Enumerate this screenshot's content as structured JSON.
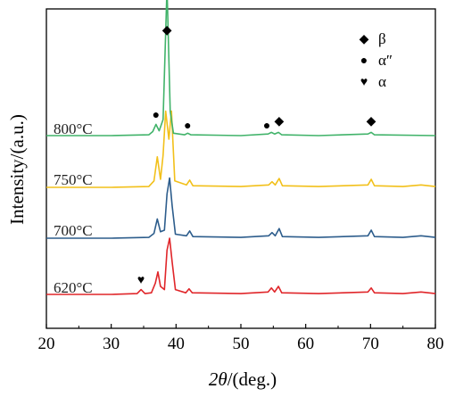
{
  "chart_data": {
    "type": "line",
    "title": "",
    "xlabel_italic": "2θ",
    "xlabel_rest": "/(deg.)",
    "ylabel": "Intensity/(a.u.)",
    "xlim": [
      20,
      80
    ],
    "x_ticks": [
      20,
      30,
      40,
      50,
      60,
      70,
      80
    ],
    "grid": false,
    "legend_position": "top-right",
    "legend": [
      {
        "symbol": "◆",
        "name": "β"
      },
      {
        "symbol": "●",
        "name": "α″"
      },
      {
        "symbol": "♥",
        "name": "α"
      }
    ],
    "series": [
      {
        "name": "620°C",
        "color": "#e0262a",
        "offset": 0,
        "points": [
          [
            20,
            0
          ],
          [
            30,
            0
          ],
          [
            34.0,
            1
          ],
          [
            34.6,
            6
          ],
          [
            35.2,
            1
          ],
          [
            36.2,
            2
          ],
          [
            36.8,
            14
          ],
          [
            37.2,
            28
          ],
          [
            37.6,
            10
          ],
          [
            38.2,
            6
          ],
          [
            38.6,
            55
          ],
          [
            39.0,
            70
          ],
          [
            39.4,
            40
          ],
          [
            39.9,
            6
          ],
          [
            41.5,
            2
          ],
          [
            42.0,
            7
          ],
          [
            42.5,
            2
          ],
          [
            50,
            1
          ],
          [
            54.2,
            3
          ],
          [
            54.7,
            8
          ],
          [
            55.2,
            3
          ],
          [
            55.8,
            10
          ],
          [
            56.3,
            2
          ],
          [
            62,
            1
          ],
          [
            69.6,
            3
          ],
          [
            70.1,
            8
          ],
          [
            70.6,
            2
          ],
          [
            75,
            1
          ],
          [
            77.8,
            3
          ],
          [
            80,
            1
          ]
        ]
      },
      {
        "name": "700°C",
        "color": "#2d5d8c",
        "offset": 0,
        "points": [
          [
            20,
            0
          ],
          [
            30,
            0
          ],
          [
            35.8,
            1
          ],
          [
            36.6,
            6
          ],
          [
            37.1,
            24
          ],
          [
            37.6,
            8
          ],
          [
            38.2,
            10
          ],
          [
            38.6,
            55
          ],
          [
            39.0,
            75
          ],
          [
            39.4,
            40
          ],
          [
            39.9,
            5
          ],
          [
            41.6,
            3
          ],
          [
            42.1,
            9
          ],
          [
            42.6,
            2
          ],
          [
            50,
            1
          ],
          [
            54.3,
            3
          ],
          [
            54.8,
            7
          ],
          [
            55.3,
            3
          ],
          [
            55.9,
            12
          ],
          [
            56.4,
            2
          ],
          [
            62,
            1
          ],
          [
            69.6,
            3
          ],
          [
            70.1,
            10
          ],
          [
            70.6,
            2
          ],
          [
            75,
            1
          ],
          [
            77.8,
            3
          ],
          [
            80,
            1
          ]
        ]
      },
      {
        "name": "750°C",
        "color": "#f2c01a",
        "offset": 0,
        "points": [
          [
            20,
            0
          ],
          [
            30,
            0
          ],
          [
            35.8,
            1
          ],
          [
            36.6,
            8
          ],
          [
            37.1,
            38
          ],
          [
            37.6,
            10
          ],
          [
            38.0,
            40
          ],
          [
            38.4,
            95
          ],
          [
            38.9,
            60
          ],
          [
            39.3,
            95
          ],
          [
            39.8,
            8
          ],
          [
            41.6,
            3
          ],
          [
            42.1,
            9
          ],
          [
            42.6,
            2
          ],
          [
            50,
            1
          ],
          [
            54.3,
            3
          ],
          [
            54.8,
            7
          ],
          [
            55.3,
            3
          ],
          [
            55.9,
            11
          ],
          [
            56.4,
            2
          ],
          [
            62,
            1
          ],
          [
            69.6,
            3
          ],
          [
            70.1,
            10
          ],
          [
            70.6,
            2
          ],
          [
            75,
            1
          ],
          [
            77.8,
            3
          ],
          [
            80,
            1
          ]
        ]
      },
      {
        "name": "800°C",
        "color": "#41b36a",
        "offset": 0,
        "points": [
          [
            20,
            0
          ],
          [
            30,
            0
          ],
          [
            35.8,
            1
          ],
          [
            36.4,
            5
          ],
          [
            36.9,
            14
          ],
          [
            37.4,
            6
          ],
          [
            38.0,
            20
          ],
          [
            38.6,
            185
          ],
          [
            39.1,
            30
          ],
          [
            39.6,
            3
          ],
          [
            41.3,
            1
          ],
          [
            41.8,
            3
          ],
          [
            42.3,
            1
          ],
          [
            50,
            0
          ],
          [
            54.2,
            2
          ],
          [
            54.7,
            4
          ],
          [
            55.2,
            2
          ],
          [
            55.8,
            4
          ],
          [
            56.3,
            1
          ],
          [
            62,
            0
          ],
          [
            69.6,
            2
          ],
          [
            70.1,
            4
          ],
          [
            70.6,
            1
          ],
          [
            80,
            0
          ]
        ]
      }
    ],
    "annotations": [
      {
        "symbol": "♥",
        "x": 34.6,
        "series": "620°C"
      },
      {
        "symbol": "◆",
        "x": 38.6,
        "series": "800°C"
      },
      {
        "symbol": "●",
        "x": 36.9,
        "series": "800°C"
      },
      {
        "symbol": "●",
        "x": 41.8,
        "series": "800°C"
      },
      {
        "symbol": "●",
        "x": 54.0,
        "series": "800°C"
      },
      {
        "symbol": "◆",
        "x": 55.9,
        "series": "800°C"
      },
      {
        "symbol": "◆",
        "x": 70.1,
        "series": "800°C"
      }
    ]
  }
}
